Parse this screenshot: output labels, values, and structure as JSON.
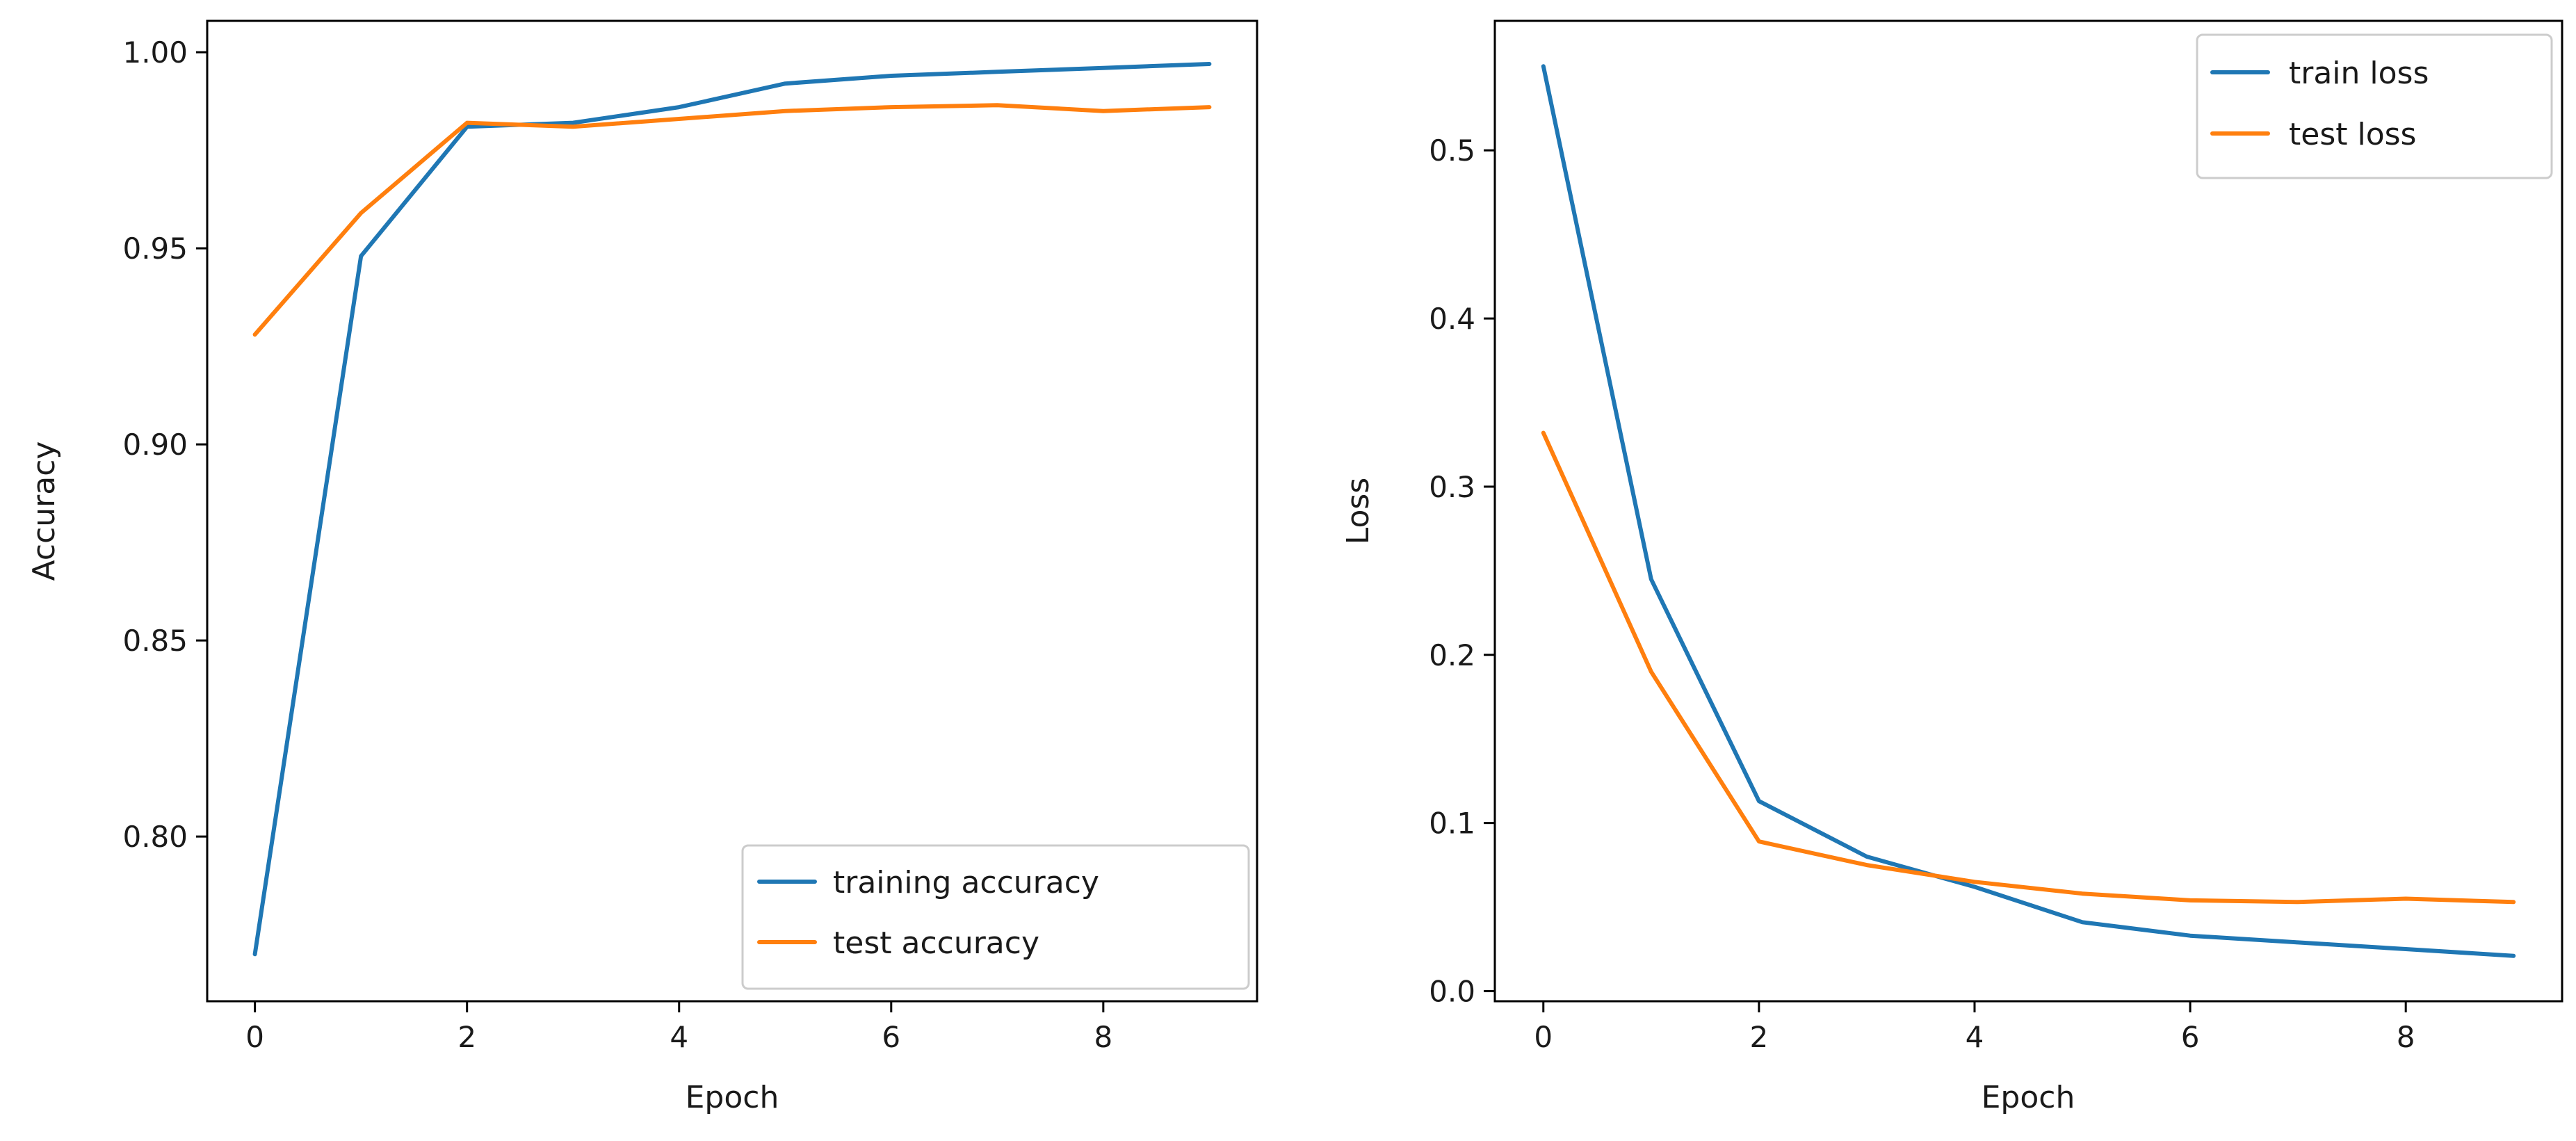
{
  "chart_data": [
    {
      "type": "line",
      "title": "",
      "xlabel": "Epoch",
      "ylabel": "Accuracy",
      "xlim": [
        -0.45,
        9.45
      ],
      "ylim": [
        0.758,
        1.008
      ],
      "xticks": [
        0,
        2,
        4,
        6,
        8
      ],
      "xtick_labels": [
        "0",
        "2",
        "4",
        "6",
        "8"
      ],
      "yticks": [
        0.8,
        0.85,
        0.9,
        0.95,
        1.0
      ],
      "ytick_labels": [
        "0.80",
        "0.85",
        "0.90",
        "0.95",
        "1.00"
      ],
      "legend_position": "lower-right",
      "x": [
        0,
        1,
        2,
        3,
        4,
        5,
        6,
        7,
        8,
        9
      ],
      "series": [
        {
          "name": "training accuracy",
          "color": "#1f77b4",
          "values": [
            0.77,
            0.948,
            0.981,
            0.982,
            0.986,
            0.992,
            0.994,
            0.995,
            0.996,
            0.997
          ]
        },
        {
          "name": "test accuracy",
          "color": "#ff7f0e",
          "values": [
            0.928,
            0.959,
            0.982,
            0.981,
            0.983,
            0.985,
            0.986,
            0.9865,
            0.985,
            0.986
          ]
        }
      ]
    },
    {
      "type": "line",
      "title": "",
      "xlabel": "Epoch",
      "ylabel": "Loss",
      "xlim": [
        -0.45,
        9.45
      ],
      "ylim": [
        -0.006,
        0.577
      ],
      "xticks": [
        0,
        2,
        4,
        6,
        8
      ],
      "xtick_labels": [
        "0",
        "2",
        "4",
        "6",
        "8"
      ],
      "yticks": [
        0.0,
        0.1,
        0.2,
        0.3,
        0.4,
        0.5
      ],
      "ytick_labels": [
        "0.0",
        "0.1",
        "0.2",
        "0.3",
        "0.4",
        "0.5"
      ],
      "legend_position": "upper-right",
      "x": [
        0,
        1,
        2,
        3,
        4,
        5,
        6,
        7,
        8,
        9
      ],
      "series": [
        {
          "name": "train loss",
          "color": "#1f77b4",
          "values": [
            0.55,
            0.245,
            0.113,
            0.08,
            0.062,
            0.041,
            0.033,
            0.029,
            0.025,
            0.021
          ]
        },
        {
          "name": "test loss",
          "color": "#ff7f0e",
          "values": [
            0.332,
            0.19,
            0.089,
            0.075,
            0.065,
            0.058,
            0.054,
            0.053,
            0.055,
            0.053
          ]
        }
      ]
    }
  ]
}
